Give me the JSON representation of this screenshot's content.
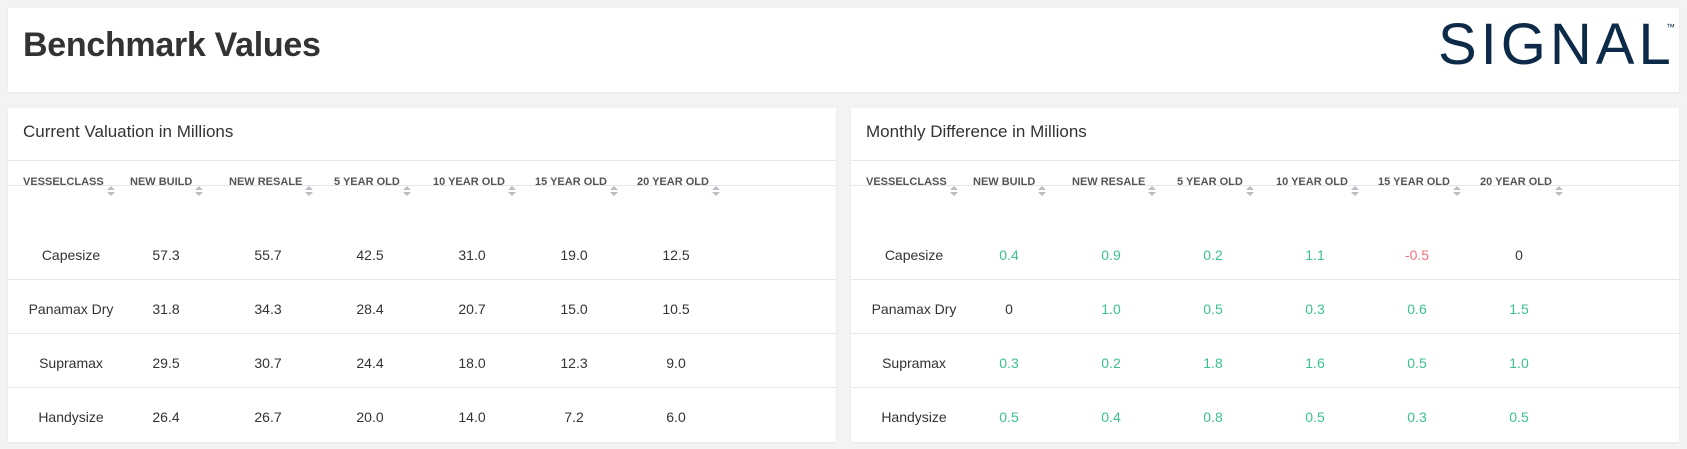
{
  "header": {
    "title": "Benchmark Values",
    "logo_text": "SIGNAL",
    "logo_tm": "™",
    "logo_color": "#0d2b49"
  },
  "columns": [
    "VESSELCLASS",
    "NEW BUILD",
    "NEW RESALE",
    "5 YEAR OLD",
    "10 YEAR OLD",
    "15 YEAR OLD",
    "20 YEAR OLD"
  ],
  "current": {
    "title": "Current Valuation in Millions",
    "rows": [
      {
        "vesselclass": "Capesize",
        "values": [
          "57.3",
          "55.7",
          "42.5",
          "31.0",
          "19.0",
          "12.5"
        ]
      },
      {
        "vesselclass": "Panamax Dry",
        "values": [
          "31.8",
          "34.3",
          "28.4",
          "20.7",
          "15.0",
          "10.5"
        ]
      },
      {
        "vesselclass": "Supramax",
        "values": [
          "29.5",
          "30.7",
          "24.4",
          "18.0",
          "12.3",
          "9.0"
        ]
      },
      {
        "vesselclass": "Handysize",
        "values": [
          "26.4",
          "26.7",
          "20.0",
          "14.0",
          "7.2",
          "6.0"
        ]
      }
    ]
  },
  "monthly": {
    "title": "Monthly Difference in Millions",
    "rows": [
      {
        "vesselclass": "Capesize",
        "values": [
          "0.4",
          "0.9",
          "0.2",
          "1.1",
          "-0.5",
          "0"
        ]
      },
      {
        "vesselclass": "Panamax Dry",
        "values": [
          "0",
          "1.0",
          "0.5",
          "0.3",
          "0.6",
          "1.5"
        ]
      },
      {
        "vesselclass": "Supramax",
        "values": [
          "0.3",
          "0.2",
          "1.8",
          "1.6",
          "0.5",
          "1.0"
        ]
      },
      {
        "vesselclass": "Handysize",
        "values": [
          "0.5",
          "0.4",
          "0.8",
          "0.5",
          "0.3",
          "0.5"
        ]
      }
    ]
  },
  "colors": {
    "positive": "#3cc08e",
    "negative": "#f0737b",
    "neutral": "#333333",
    "logo": "#0d2b49"
  }
}
